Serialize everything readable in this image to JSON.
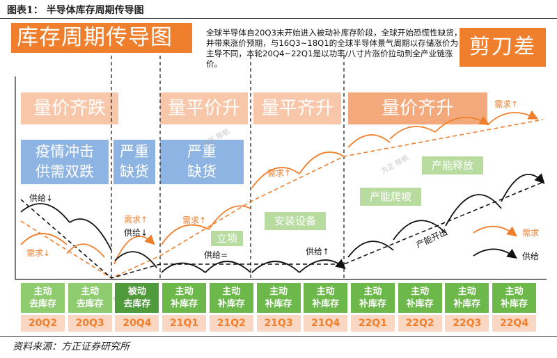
{
  "figure_title": "图表1：  半导体库存周期传导图",
  "main_title": "库存周期传导图",
  "description": "全球半导体自20Q3末开始进入被动补库存阶段，全球开始恐慌性缺货，并带来涨价预期，与16Q3~18Q1的全球半导体景气周期以存储涨价为主导不同，本轮20Q4~22Q1是以功率/八寸片涨价拉动到全产业链涨价。",
  "scissors_label": "剪刀差",
  "phases": [
    "量价齐跌",
    "量平价升",
    "量平齐升",
    "量价齐升"
  ],
  "blue_boxes": [
    {
      "line1": "疫情冲击",
      "line2": "供需双跌"
    },
    {
      "line1": "严重",
      "line2": "缺货"
    },
    {
      "line1": "严重",
      "line2": "缺货"
    }
  ],
  "green_boxes": [
    "立项",
    "安装设备",
    "产能爬坡",
    "产能释放"
  ],
  "labels": {
    "supply_down": "供给↓",
    "demand_down": "需求↓",
    "demand_up_1": "需求↑",
    "supply_down_2": "供给↓",
    "demand_up_2": "需求↑",
    "supply_eq": "供给=",
    "demand_up_3": "需求↑",
    "supply_up": "供给↑",
    "demand_up_4": "需求↑",
    "capacity_out": "产能开出"
  },
  "legend": {
    "demand": "需求",
    "supply": "供给"
  },
  "watermarks": [
    "方正 陈杭",
    "方正 陈杭",
    "方正 陈杭"
  ],
  "stages": [
    {
      "line1": "主动",
      "line2": "去库存",
      "quarter": "20Q2",
      "color": "#8fcc6f"
    },
    {
      "line1": "主动",
      "line2": "去库存",
      "quarter": "20Q3",
      "color": "#8fcc6f"
    },
    {
      "line1": "被动",
      "line2": "去库存",
      "quarter": "20Q4",
      "color": "#4f9a3a"
    },
    {
      "line1": "主动",
      "line2": "补库存",
      "quarter": "21Q1",
      "color": "#6cb84a"
    },
    {
      "line1": "主动",
      "line2": "补库存",
      "quarter": "21Q2",
      "color": "#6cb84a"
    },
    {
      "line1": "主动",
      "line2": "补库存",
      "quarter": "21Q3",
      "color": "#6cb84a"
    },
    {
      "line1": "主动",
      "line2": "补库存",
      "quarter": "21Q4",
      "color": "#6cb84a"
    },
    {
      "line1": "主动",
      "line2": "补库存",
      "quarter": "22Q1",
      "color": "#6cb84a"
    },
    {
      "line1": "主动",
      "line2": "补库存",
      "quarter": "22Q2",
      "color": "#6cb84a"
    },
    {
      "line1": "主动",
      "line2": "补库存",
      "quarter": "22Q3",
      "color": "#6cb84a"
    },
    {
      "line1": "主动",
      "line2": "补库存",
      "quarter": "22Q4",
      "color": "#6cb84a"
    }
  ],
  "source": "资料来源：方正证券研究所",
  "colors": {
    "demand": "#f07f2d",
    "supply": "#111111"
  }
}
